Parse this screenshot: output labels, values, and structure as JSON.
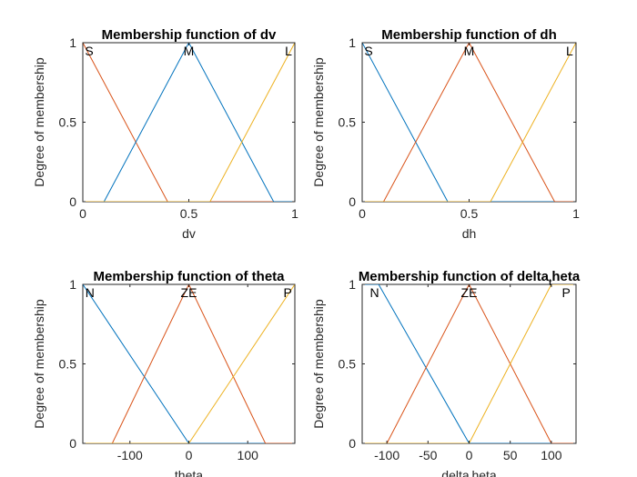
{
  "chart_data": [
    {
      "type": "line",
      "title": "Membership function of dv",
      "title_sub": "",
      "title_post": "",
      "xlabel": "dv",
      "xlabel_sub": "",
      "xlabel_post": "",
      "ylabel": "Degree of membership",
      "xlim": [
        0,
        1
      ],
      "ylim": [
        0,
        1
      ],
      "xticks": [
        0,
        0.5,
        1
      ],
      "xtick_labels": [
        "0",
        "0.5",
        "1"
      ],
      "yticks": [
        0,
        0.5,
        1
      ],
      "ytick_labels": [
        "0",
        "0.5",
        "1"
      ],
      "series": [
        {
          "name": "S",
          "color": "#D95319",
          "x": [
            -0.4,
            0,
            0.4,
            1
          ],
          "y": [
            0,
            1,
            0,
            0
          ],
          "label_x": 0.03
        },
        {
          "name": "M",
          "color": "#0072BD",
          "x": [
            0,
            0.1,
            0.5,
            0.9,
            1
          ],
          "y": [
            0,
            0,
            1,
            0,
            0
          ],
          "label_x": 0.5
        },
        {
          "name": "L",
          "color": "#EDB120",
          "x": [
            0,
            0.6,
            1
          ],
          "y": [
            0,
            0,
            1
          ],
          "label_x": 0.97
        }
      ]
    },
    {
      "type": "line",
      "title": "Membership function of dh",
      "title_sub": "",
      "title_post": "",
      "xlabel": "dh",
      "xlabel_sub": "",
      "xlabel_post": "",
      "ylabel": "Degree of membership",
      "xlim": [
        0,
        1
      ],
      "ylim": [
        0,
        1
      ],
      "xticks": [
        0,
        0.5,
        1
      ],
      "xtick_labels": [
        "0",
        "0.5",
        "1"
      ],
      "yticks": [
        0,
        0.5,
        1
      ],
      "ytick_labels": [
        "0",
        "0.5",
        "1"
      ],
      "series": [
        {
          "name": "S",
          "color": "#0072BD",
          "x": [
            0,
            0.4,
            1
          ],
          "y": [
            1,
            0,
            0
          ],
          "label_x": 0.03
        },
        {
          "name": "M",
          "color": "#D95319",
          "x": [
            0,
            0.1,
            0.5,
            0.9,
            1
          ],
          "y": [
            0,
            0,
            1,
            0,
            0
          ],
          "label_x": 0.5
        },
        {
          "name": "L",
          "color": "#EDB120",
          "x": [
            0,
            0.6,
            1
          ],
          "y": [
            0,
            0,
            1
          ],
          "label_x": 0.97
        }
      ]
    },
    {
      "type": "line",
      "title": "Membership function of theta",
      "title_sub": "",
      "title_post": "",
      "xlabel": "theta",
      "xlabel_sub": "",
      "xlabel_post": "",
      "ylabel": "Degree of membership",
      "xlim": [
        -180,
        180
      ],
      "ylim": [
        0,
        1
      ],
      "xticks": [
        -100,
        0,
        100
      ],
      "xtick_labels": [
        "-100",
        "0",
        "100"
      ],
      "yticks": [
        0,
        0.5,
        1
      ],
      "ytick_labels": [
        "0",
        "0.5",
        "1"
      ],
      "series": [
        {
          "name": "N",
          "color": "#0072BD",
          "x": [
            -180,
            0,
            180
          ],
          "y": [
            1,
            0,
            0
          ],
          "label_x": -168
        },
        {
          "name": "ZE",
          "color": "#D95319",
          "x": [
            -180,
            -130,
            0,
            130,
            180
          ],
          "y": [
            0,
            0,
            1,
            0,
            0
          ],
          "label_x": 0
        },
        {
          "name": "P",
          "color": "#EDB120",
          "x": [
            -180,
            0,
            180
          ],
          "y": [
            0,
            0,
            1
          ],
          "label_x": 168
        }
      ]
    },
    {
      "type": "line",
      "title": "Membership function of delta",
      "title_sub": "t",
      "title_post": "heta",
      "xlabel": "delta",
      "xlabel_sub": "t",
      "xlabel_post": "heta",
      "ylabel": "Degree of membership",
      "xlim": [
        -130,
        130
      ],
      "ylim": [
        0,
        1
      ],
      "xticks": [
        -100,
        -50,
        0,
        50,
        100
      ],
      "xtick_labels": [
        "-100",
        "-50",
        "0",
        "50",
        "100"
      ],
      "yticks": [
        0,
        0.5,
        1
      ],
      "ytick_labels": [
        "0",
        "0.5",
        "1"
      ],
      "series": [
        {
          "name": "N",
          "color": "#0072BD",
          "x": [
            -130,
            -110,
            0,
            130
          ],
          "y": [
            1,
            1,
            0,
            0
          ],
          "label_x": -115
        },
        {
          "name": "ZE",
          "color": "#D95319",
          "x": [
            -130,
            -100,
            0,
            100,
            130
          ],
          "y": [
            0,
            0,
            1,
            0,
            0
          ],
          "label_x": 0
        },
        {
          "name": "P",
          "color": "#EDB120",
          "x": [
            -130,
            0,
            100,
            130
          ],
          "y": [
            0,
            0,
            1,
            1
          ],
          "label_x": 118
        }
      ]
    }
  ]
}
